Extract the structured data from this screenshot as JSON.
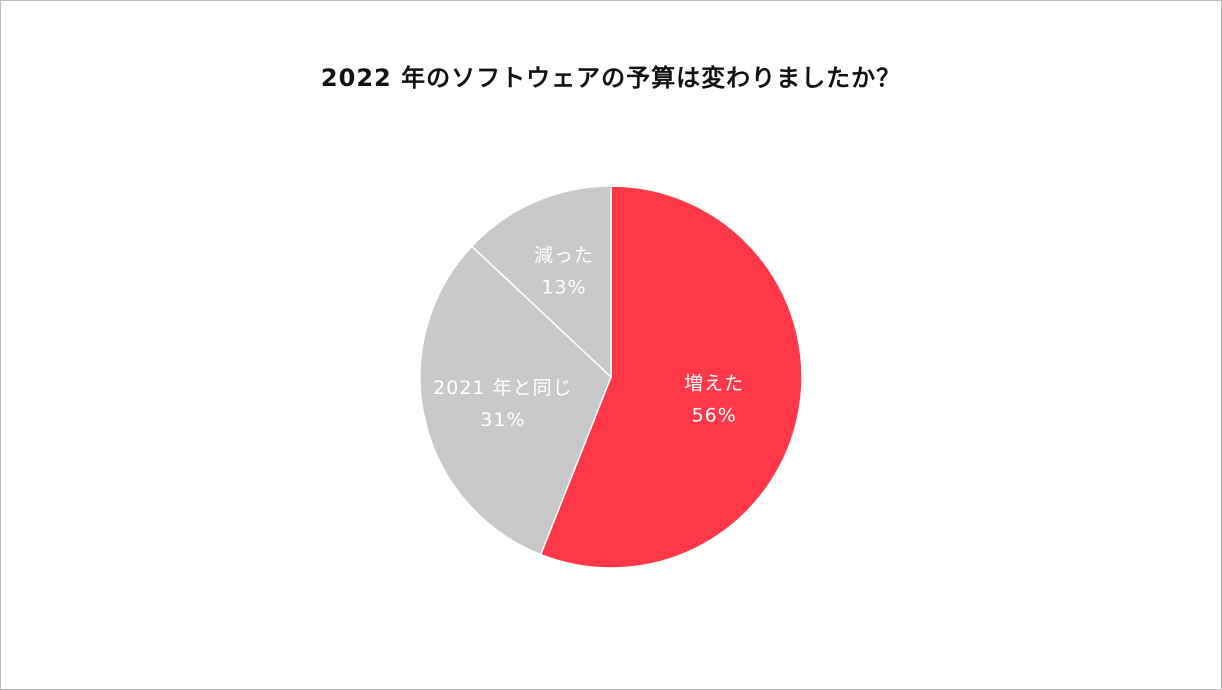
{
  "chart_data": {
    "type": "pie",
    "title": "2022 年のソフトウェアの予算は変わりましたか？",
    "slices": [
      {
        "label": "増えた",
        "value": 56,
        "value_label": "56%",
        "color": "#fe3849"
      },
      {
        "label": "2021 年と同じ",
        "value": 31,
        "value_label": "31%",
        "color": "#c8c8c8"
      },
      {
        "label": "減った",
        "value": 13,
        "value_label": "13%",
        "color": "#c8c8c8"
      }
    ],
    "start": "12 o'clock",
    "direction": "clockwise",
    "slice_border_color": "#ffffff"
  }
}
